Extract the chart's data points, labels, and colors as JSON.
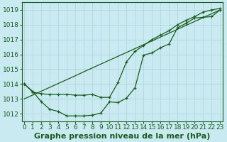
{
  "title": "Graphe pression niveau de la mer (hPa)",
  "bg_color": "#c8eaf0",
  "line_color": "#1a5c1a",
  "grid_color": "#b0d8e0",
  "xlim": [
    -0.3,
    23.3
  ],
  "ylim": [
    1011.5,
    1019.5
  ],
  "yticks": [
    1012,
    1013,
    1014,
    1015,
    1016,
    1017,
    1018,
    1019
  ],
  "xticks": [
    0,
    1,
    2,
    3,
    4,
    5,
    6,
    7,
    8,
    9,
    10,
    11,
    12,
    13,
    14,
    15,
    16,
    17,
    18,
    19,
    20,
    21,
    22,
    23
  ],
  "line_straight": [
    1013.0,
    1013.26,
    1013.52,
    1013.78,
    1014.04,
    1014.3,
    1014.56,
    1014.83,
    1015.09,
    1015.35,
    1015.61,
    1015.87,
    1016.13,
    1016.39,
    1016.65,
    1016.91,
    1017.17,
    1017.43,
    1017.7,
    1017.96,
    1018.22,
    1018.48,
    1018.74,
    1019.0
  ],
  "line_zigzag": [
    1014.0,
    1013.5,
    1012.8,
    1012.3,
    1012.15,
    1011.85,
    1011.85,
    1011.85,
    1011.9,
    1012.05,
    1012.8,
    1012.75,
    1013.05,
    1013.75,
    1015.95,
    1016.1,
    1016.45,
    1016.7,
    1017.8,
    1018.1,
    1018.45,
    1018.5,
    1018.55,
    1019.0
  ],
  "line_smooth": [
    1014.0,
    1013.45,
    1013.35,
    1013.3,
    1013.3,
    1013.3,
    1013.25,
    1013.25,
    1013.3,
    1013.1,
    1013.1,
    1014.1,
    1015.5,
    1016.2,
    1016.6,
    1017.0,
    1017.3,
    1017.6,
    1018.0,
    1018.3,
    1018.55,
    1018.85,
    1019.0,
    1019.1
  ],
  "title_fontsize": 8,
  "tick_fontsize": 6.5
}
